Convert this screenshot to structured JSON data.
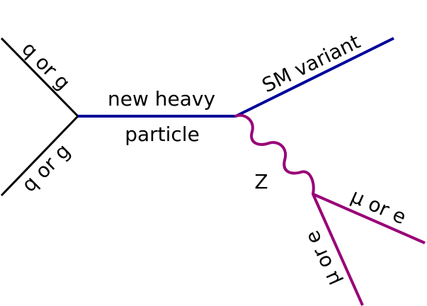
{
  "labels": {
    "incoming_top": "q or g",
    "incoming_bottom": "q or g",
    "propagator_top": "new heavy",
    "propagator_bottom": "particle",
    "outgoing_sm": "SM variant",
    "boson": "Z",
    "lepton_upper": "μ or e",
    "lepton_lower": "μ or e"
  },
  "colors": {
    "incoming": "#000000",
    "heavy_particle": "#000099",
    "boson_and_leptons": "#990077",
    "text": "#000000"
  }
}
